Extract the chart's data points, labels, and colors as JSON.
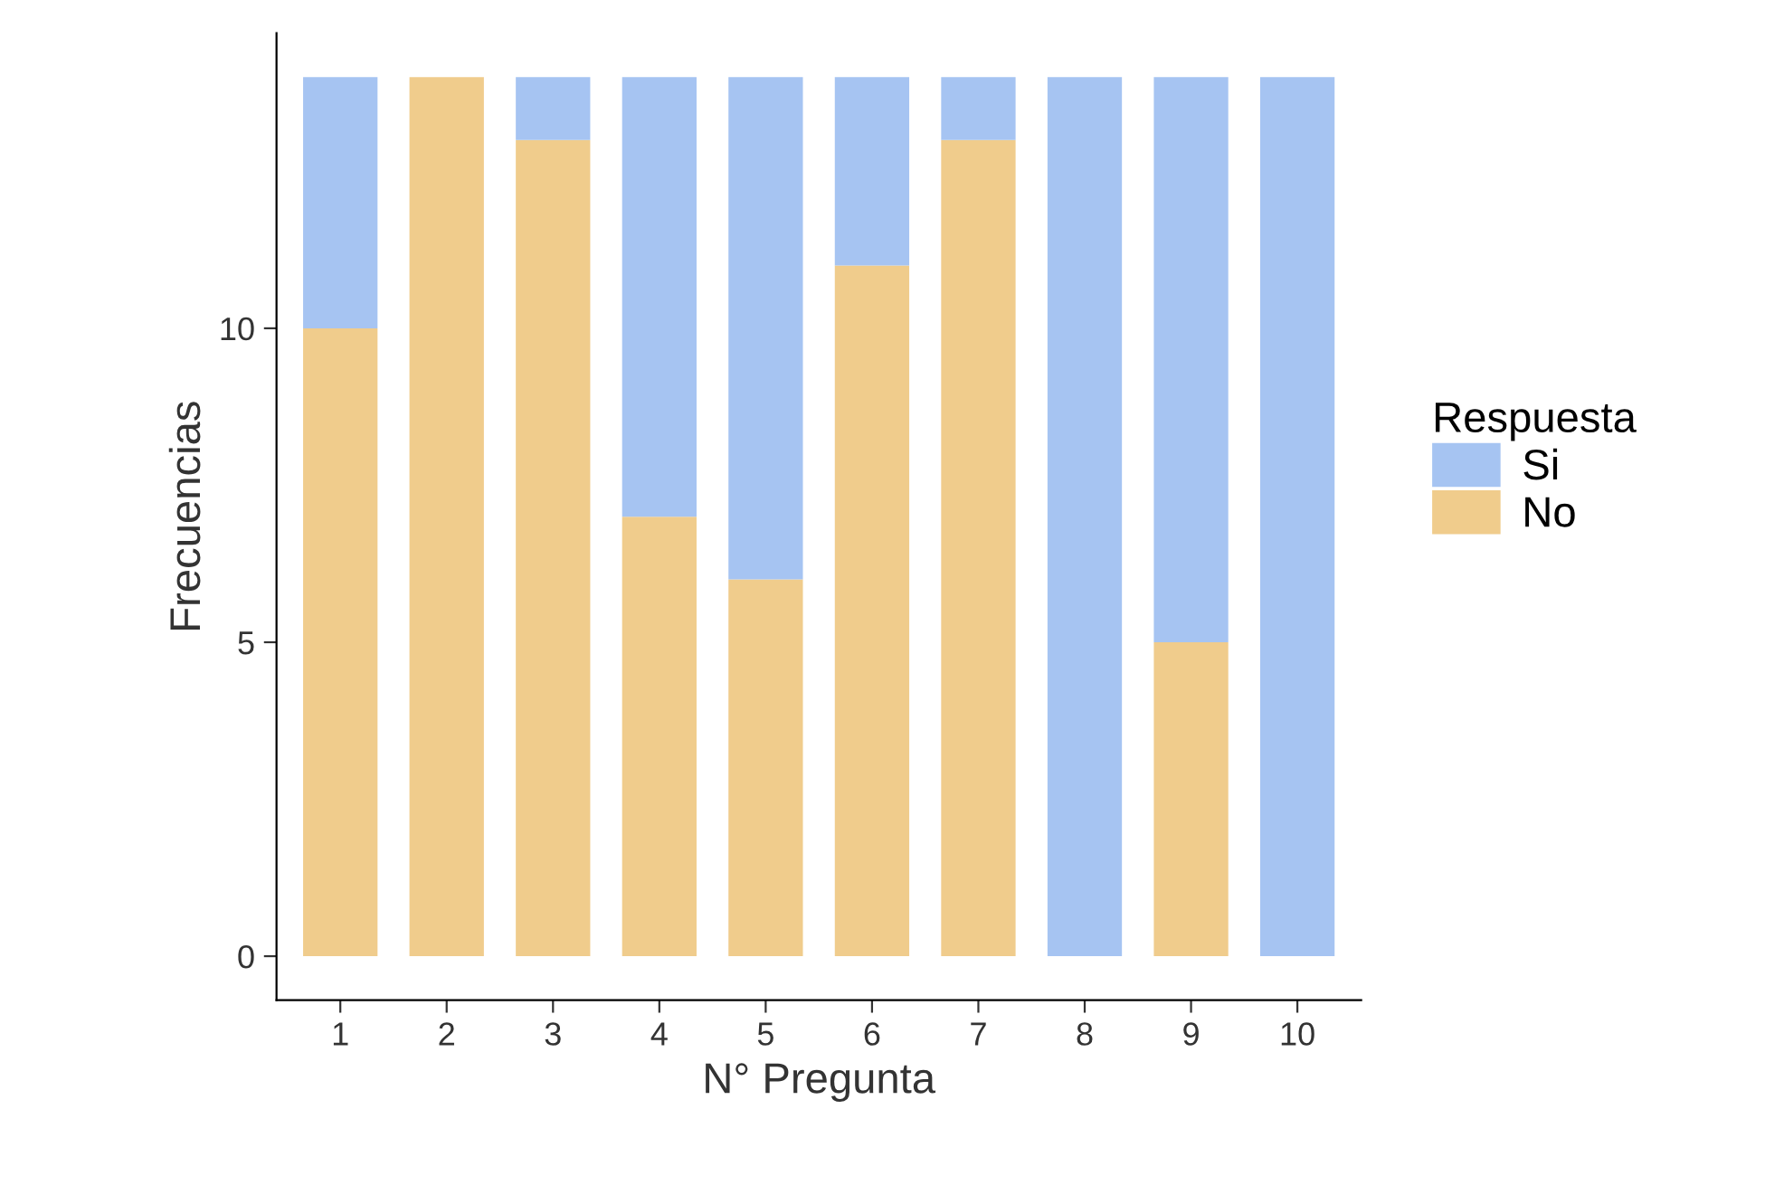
{
  "chart_data": {
    "type": "bar",
    "stacked": true,
    "xlabel": "N° Pregunta",
    "ylabel": "Frecuencias",
    "legend_title": "Respuesta",
    "categories": [
      "1",
      "2",
      "3",
      "4",
      "5",
      "6",
      "7",
      "8",
      "9",
      "10"
    ],
    "series": [
      {
        "name": "No",
        "color": "#f0cc8c",
        "values": [
          10,
          14,
          13,
          7,
          6,
          11,
          13,
          0,
          5,
          0
        ]
      },
      {
        "name": "Si",
        "color": "#a6c4f2",
        "values": [
          4,
          0,
          1,
          7,
          8,
          3,
          1,
          14,
          9,
          14
        ]
      }
    ],
    "ylim": [
      -0.7,
      14.7
    ],
    "yticks": [
      0,
      5,
      10
    ],
    "grid": false,
    "legend": "right"
  }
}
